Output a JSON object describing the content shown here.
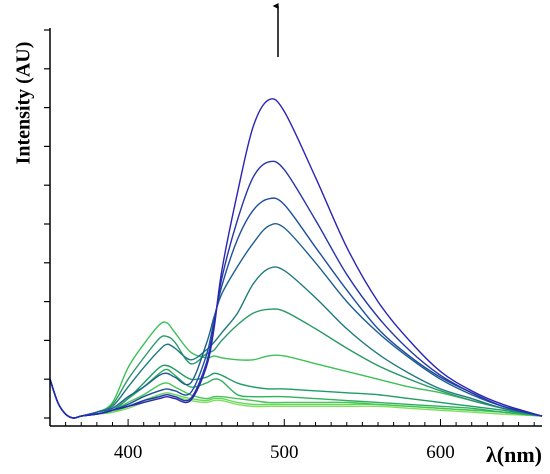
{
  "chart_data": {
    "type": "line",
    "title": "",
    "xlabel": "λ(nm)",
    "ylabel": "Intensity (AU)",
    "xlim": [
      350,
      665
    ],
    "ylim": [
      0,
      100
    ],
    "x_ticks": [
      400,
      500,
      600
    ],
    "x_tick_labels": [
      "400",
      "500",
      "600"
    ],
    "y_ticks": [
      0,
      10,
      20,
      30,
      40,
      50,
      60,
      70,
      80,
      90,
      100
    ],
    "y_tick_labels": [],
    "grid": false,
    "legend": "none",
    "annotation": "upward arrow above the 490 nm peak indicating increasing intensity",
    "series": [
      {
        "color": "#7fe05f",
        "x": [
          350,
          355,
          360,
          365,
          370,
          380,
          390,
          400,
          410,
          420,
          425,
          430,
          440,
          450,
          455,
          460,
          470,
          480,
          490,
          500,
          520,
          540,
          560,
          580,
          600,
          620,
          640,
          665
        ],
        "y": [
          10,
          4,
          1,
          0,
          0.5,
          1,
          1.5,
          2.5,
          4,
          5.5,
          6,
          5.5,
          4.5,
          4,
          4.5,
          4.5,
          3.5,
          3,
          3,
          3,
          3,
          3,
          3,
          2.5,
          2,
          1.5,
          1,
          0.5
        ]
      },
      {
        "color": "#66d55c",
        "x": [
          350,
          355,
          360,
          365,
          370,
          380,
          390,
          400,
          410,
          420,
          425,
          430,
          440,
          450,
          455,
          460,
          470,
          480,
          490,
          500,
          520,
          540,
          560,
          580,
          600,
          620,
          640,
          665
        ],
        "y": [
          10,
          4,
          1,
          0,
          0.5,
          1,
          1.5,
          3,
          4.5,
          6,
          6.5,
          6,
          5,
          4.5,
          5,
          5,
          4,
          3.5,
          3.5,
          3.5,
          3.5,
          3.5,
          3.5,
          3,
          2.5,
          2,
          1.5,
          0.5
        ]
      },
      {
        "color": "#49c458",
        "x": [
          350,
          355,
          360,
          365,
          370,
          380,
          390,
          400,
          410,
          420,
          425,
          430,
          440,
          450,
          455,
          460,
          470,
          480,
          490,
          500,
          520,
          540,
          560,
          580,
          600,
          620,
          640,
          665
        ],
        "y": [
          10,
          4,
          1,
          0,
          0.5,
          1,
          2,
          4,
          6,
          8.5,
          9,
          8,
          6,
          5,
          5.5,
          5.5,
          5,
          4.5,
          4,
          4,
          4,
          4,
          3.5,
          3,
          2.5,
          2,
          1.5,
          0.5
        ]
      },
      {
        "color": "#2fb05c",
        "x": [
          350,
          355,
          360,
          365,
          370,
          380,
          390,
          400,
          410,
          420,
          425,
          430,
          440,
          450,
          455,
          460,
          470,
          480,
          490,
          500,
          520,
          540,
          560,
          580,
          600,
          620,
          640,
          665
        ],
        "y": [
          10,
          4,
          1,
          0,
          0.5,
          1,
          2,
          5,
          8,
          11.5,
          12.5,
          11,
          8,
          9,
          10,
          9.5,
          6,
          5.5,
          5.5,
          5.5,
          5,
          4.5,
          4,
          3.5,
          3,
          2.5,
          1.5,
          0.5
        ]
      },
      {
        "color": "#1f9c66",
        "x": [
          350,
          355,
          360,
          365,
          370,
          380,
          390,
          400,
          410,
          420,
          425,
          430,
          440,
          450,
          455,
          460,
          470,
          480,
          490,
          500,
          520,
          540,
          560,
          580,
          600,
          620,
          640,
          665
        ],
        "y": [
          10,
          4,
          1,
          0,
          0.5,
          1,
          2,
          5,
          9,
          13,
          13.5,
          12.5,
          10,
          10.5,
          11.5,
          11,
          9,
          8,
          7.5,
          7.5,
          7,
          6.5,
          6,
          5,
          4,
          3,
          2,
          0.5
        ]
      },
      {
        "color": "#3cc058",
        "x": [
          350,
          355,
          360,
          365,
          370,
          380,
          390,
          400,
          410,
          420,
          425,
          430,
          440,
          450,
          455,
          460,
          470,
          480,
          490,
          500,
          520,
          540,
          560,
          580,
          600,
          620,
          640,
          665
        ],
        "y": [
          10,
          4,
          1,
          0,
          0.5,
          1.5,
          4,
          13,
          19,
          24,
          24.5,
          22,
          17,
          15.5,
          16,
          15.5,
          15,
          15,
          16,
          16,
          14,
          12,
          10,
          8,
          6.5,
          4.5,
          2.5,
          0.5
        ]
      },
      {
        "color": "#2a9a68",
        "x": [
          350,
          355,
          360,
          365,
          370,
          380,
          390,
          400,
          410,
          420,
          425,
          430,
          440,
          450,
          455,
          460,
          470,
          480,
          490,
          500,
          520,
          540,
          560,
          580,
          600,
          620,
          640,
          665
        ],
        "y": [
          10,
          4,
          1,
          0,
          0.5,
          1.5,
          3.5,
          10,
          15.5,
          20.5,
          21,
          19.5,
          14,
          16.5,
          17.5,
          20,
          24,
          27,
          28,
          27.5,
          23,
          18,
          13.5,
          10,
          7,
          4.5,
          2.5,
          0.5
        ]
      },
      {
        "color": "#1f7a80",
        "x": [
          350,
          355,
          360,
          365,
          370,
          380,
          390,
          400,
          410,
          420,
          425,
          430,
          440,
          450,
          455,
          460,
          470,
          480,
          490,
          500,
          520,
          540,
          560,
          580,
          600,
          620,
          640,
          665
        ],
        "y": [
          10,
          4,
          1,
          0,
          0.5,
          1.5,
          3,
          8,
          13,
          17.5,
          19,
          18,
          15,
          17.5,
          19.5,
          22,
          27,
          34.5,
          38.5,
          38,
          31,
          23,
          16.5,
          11.5,
          7.5,
          5,
          2.5,
          0.5
        ]
      },
      {
        "color": "#1e5e90",
        "x": [
          350,
          355,
          360,
          365,
          370,
          380,
          390,
          400,
          410,
          420,
          425,
          430,
          440,
          450,
          455,
          460,
          470,
          480,
          490,
          500,
          520,
          540,
          560,
          580,
          600,
          620,
          640,
          665
        ],
        "y": [
          10,
          4,
          1,
          0,
          0.5,
          1.5,
          2.5,
          5.5,
          8,
          11,
          11.5,
          10.5,
          9,
          19,
          26,
          32,
          39,
          45,
          49.5,
          49,
          40,
          30,
          22,
          15.5,
          10,
          6,
          3,
          0.5
        ]
      },
      {
        "color": "#1e4da0",
        "x": [
          350,
          355,
          360,
          365,
          370,
          380,
          390,
          400,
          410,
          420,
          425,
          430,
          440,
          450,
          455,
          460,
          470,
          480,
          490,
          500,
          520,
          540,
          560,
          580,
          600,
          620,
          640,
          665
        ],
        "y": [
          10,
          4,
          1,
          0,
          0.5,
          1,
          2,
          3.5,
          5.5,
          7,
          7.5,
          7,
          6.5,
          16,
          25,
          34,
          46,
          53.5,
          56.5,
          55,
          44,
          33,
          23,
          16,
          10.5,
          6.5,
          3,
          0.5
        ]
      },
      {
        "color": "#2635a8",
        "x": [
          350,
          355,
          360,
          365,
          370,
          380,
          390,
          400,
          410,
          420,
          425,
          430,
          440,
          450,
          455,
          460,
          470,
          480,
          490,
          500,
          520,
          540,
          560,
          580,
          600,
          620,
          640,
          665
        ],
        "y": [
          10,
          4,
          1,
          0,
          0.5,
          1,
          2,
          3,
          4.5,
          5.5,
          6,
          5.5,
          5,
          14,
          24,
          36,
          51,
          62,
          66,
          64,
          51,
          37,
          26,
          17.5,
          11,
          6.5,
          3,
          0.5
        ]
      },
      {
        "color": "#2a24b8",
        "x": [
          350,
          355,
          360,
          365,
          370,
          380,
          390,
          400,
          410,
          420,
          425,
          430,
          440,
          450,
          455,
          460,
          470,
          480,
          490,
          500,
          520,
          540,
          560,
          580,
          600,
          620,
          640,
          665
        ],
        "y": [
          10,
          4,
          1,
          0,
          0.5,
          1,
          2,
          3,
          4,
          5,
          5.5,
          5,
          4.5,
          13,
          23,
          38,
          58,
          75,
          82,
          79,
          62,
          44,
          30,
          20,
          12,
          7,
          3.5,
          0.5
        ]
      }
    ]
  }
}
